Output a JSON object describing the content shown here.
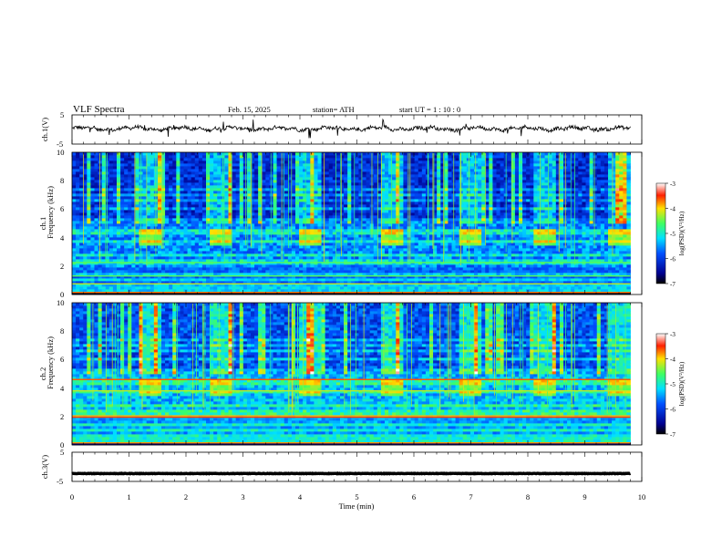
{
  "header": {
    "title": "VLF  Spectra",
    "date": "Feb. 15, 2025",
    "station": "station= ATH",
    "start": "start  UT  =   1  : 10 : 0"
  },
  "chart_data": [
    {
      "type": "line",
      "panel": "ch1-waveform",
      "ylabel": "ch.1(V)",
      "xlim": [
        0,
        10
      ],
      "ylim": [
        -5,
        5
      ],
      "yticks": [
        "5",
        "-5"
      ],
      "baseline": 0.3,
      "color": "#000000"
    },
    {
      "type": "heatmap",
      "panel": "ch1-spectrogram",
      "ylabel": "ch.1\nFrequency  (kHz)",
      "xlim": [
        0,
        9.8
      ],
      "ylim": [
        0,
        10
      ],
      "yticks": [
        "0",
        "2",
        "4",
        "6",
        "8",
        "10"
      ],
      "colorbar": {
        "label": "log(PSD)(V²/Hz)",
        "range": [
          -7,
          -3
        ],
        "ticks": [
          "-3",
          "-4",
          "-5",
          "-6",
          "-7"
        ]
      },
      "bursts_min": [
        [
          1.2,
          1.6
        ],
        [
          2.4,
          2.8
        ],
        [
          4.0,
          4.4
        ],
        [
          5.4,
          5.8
        ],
        [
          6.8,
          7.2
        ],
        [
          8.1,
          8.5
        ],
        [
          9.4,
          9.8
        ]
      ]
    },
    {
      "type": "heatmap",
      "panel": "ch2-spectrogram",
      "ylabel": "ch.2\nFrequency  (kHz)",
      "xlim": [
        0,
        9.8
      ],
      "ylim": [
        0,
        10
      ],
      "yticks": [
        "0",
        "2",
        "4",
        "6",
        "8",
        "10"
      ],
      "colorbar": {
        "label": "log(PSD)(V²/Hz)",
        "range": [
          -7,
          -3
        ],
        "ticks": [
          "-3",
          "-4",
          "-5",
          "-6",
          "-7"
        ]
      },
      "bursts_min": [
        [
          1.2,
          1.6
        ],
        [
          2.4,
          2.8
        ],
        [
          4.0,
          4.4
        ],
        [
          5.4,
          5.8
        ],
        [
          6.8,
          7.2
        ],
        [
          8.1,
          8.5
        ],
        [
          9.4,
          9.8
        ]
      ]
    },
    {
      "type": "line",
      "panel": "ch3-waveform",
      "ylabel": "ch.3(V)",
      "xlim": [
        0,
        10
      ],
      "ylim": [
        -5,
        5
      ],
      "yticks": [
        "5",
        "-5"
      ],
      "baseline": -2.3,
      "color": "#000000"
    }
  ],
  "xaxis": {
    "label": "Time  (min)",
    "ticks": [
      "0",
      "1",
      "2",
      "3",
      "4",
      "5",
      "6",
      "7",
      "8",
      "9",
      "10"
    ]
  }
}
